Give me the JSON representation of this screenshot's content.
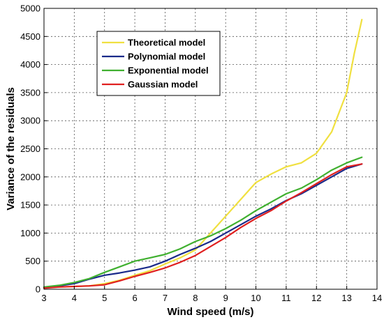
{
  "chart_data": {
    "type": "line",
    "title": "",
    "xlabel": "Wind speed (m/s)",
    "ylabel": "Variance of the residuals",
    "xlim": [
      3,
      14
    ],
    "ylim": [
      0,
      5000
    ],
    "xticks": [
      3,
      4,
      5,
      6,
      7,
      8,
      9,
      10,
      11,
      12,
      13,
      14
    ],
    "yticks": [
      0,
      500,
      1000,
      1500,
      2000,
      2500,
      3000,
      3500,
      4000,
      4500,
      5000
    ],
    "grid": true,
    "legend_position": "top-left",
    "series": [
      {
        "name": "Theoretical model",
        "color": "#f0e040",
        "points": [
          [
            3,
            30
          ],
          [
            3.5,
            40
          ],
          [
            4,
            50
          ],
          [
            4.5,
            60
          ],
          [
            5,
            100
          ],
          [
            5.5,
            160
          ],
          [
            6,
            250
          ],
          [
            6.5,
            330
          ],
          [
            7,
            450
          ],
          [
            7.5,
            560
          ],
          [
            8,
            700
          ],
          [
            8.5,
            1000
          ],
          [
            9,
            1300
          ],
          [
            9.5,
            1600
          ],
          [
            10,
            1900
          ],
          [
            10.5,
            2050
          ],
          [
            11,
            2180
          ],
          [
            11.5,
            2250
          ],
          [
            12,
            2420
          ],
          [
            12.5,
            2800
          ],
          [
            13,
            3500
          ],
          [
            13.25,
            4200
          ],
          [
            13.5,
            4800
          ]
        ]
      },
      {
        "name": "Polynomial model",
        "color": "#1a2a8a",
        "points": [
          [
            3,
            30
          ],
          [
            3.5,
            60
          ],
          [
            4,
            100
          ],
          [
            4.5,
            180
          ],
          [
            5,
            250
          ],
          [
            5.5,
            290
          ],
          [
            6,
            340
          ],
          [
            6.5,
            400
          ],
          [
            7,
            500
          ],
          [
            7.5,
            620
          ],
          [
            8,
            730
          ],
          [
            8.5,
            850
          ],
          [
            9,
            1000
          ],
          [
            9.5,
            1150
          ],
          [
            10,
            1300
          ],
          [
            10.5,
            1430
          ],
          [
            11,
            1580
          ],
          [
            11.5,
            1700
          ],
          [
            12,
            1850
          ],
          [
            12.5,
            2000
          ],
          [
            13,
            2150
          ],
          [
            13.5,
            2230
          ]
        ]
      },
      {
        "name": "Exponential model",
        "color": "#40b030",
        "points": [
          [
            3,
            40
          ],
          [
            3.5,
            70
          ],
          [
            4,
            120
          ],
          [
            4.5,
            190
          ],
          [
            5,
            300
          ],
          [
            5.5,
            400
          ],
          [
            6,
            500
          ],
          [
            6.5,
            560
          ],
          [
            7,
            620
          ],
          [
            7.5,
            720
          ],
          [
            8,
            850
          ],
          [
            8.5,
            950
          ],
          [
            9,
            1080
          ],
          [
            9.5,
            1230
          ],
          [
            10,
            1400
          ],
          [
            10.5,
            1550
          ],
          [
            11,
            1700
          ],
          [
            11.5,
            1800
          ],
          [
            12,
            1950
          ],
          [
            12.5,
            2120
          ],
          [
            13,
            2250
          ],
          [
            13.5,
            2350
          ]
        ]
      },
      {
        "name": "Gaussian model",
        "color": "#e02020",
        "points": [
          [
            3,
            20
          ],
          [
            3.5,
            40
          ],
          [
            4,
            50
          ],
          [
            4.5,
            60
          ],
          [
            5,
            80
          ],
          [
            5.5,
            150
          ],
          [
            6,
            230
          ],
          [
            6.5,
            300
          ],
          [
            7,
            380
          ],
          [
            7.5,
            480
          ],
          [
            8,
            600
          ],
          [
            8.5,
            760
          ],
          [
            9,
            920
          ],
          [
            9.5,
            1100
          ],
          [
            10,
            1260
          ],
          [
            10.5,
            1400
          ],
          [
            11,
            1570
          ],
          [
            11.5,
            1720
          ],
          [
            12,
            1880
          ],
          [
            12.5,
            2040
          ],
          [
            13,
            2180
          ],
          [
            13.5,
            2230
          ]
        ]
      }
    ]
  }
}
